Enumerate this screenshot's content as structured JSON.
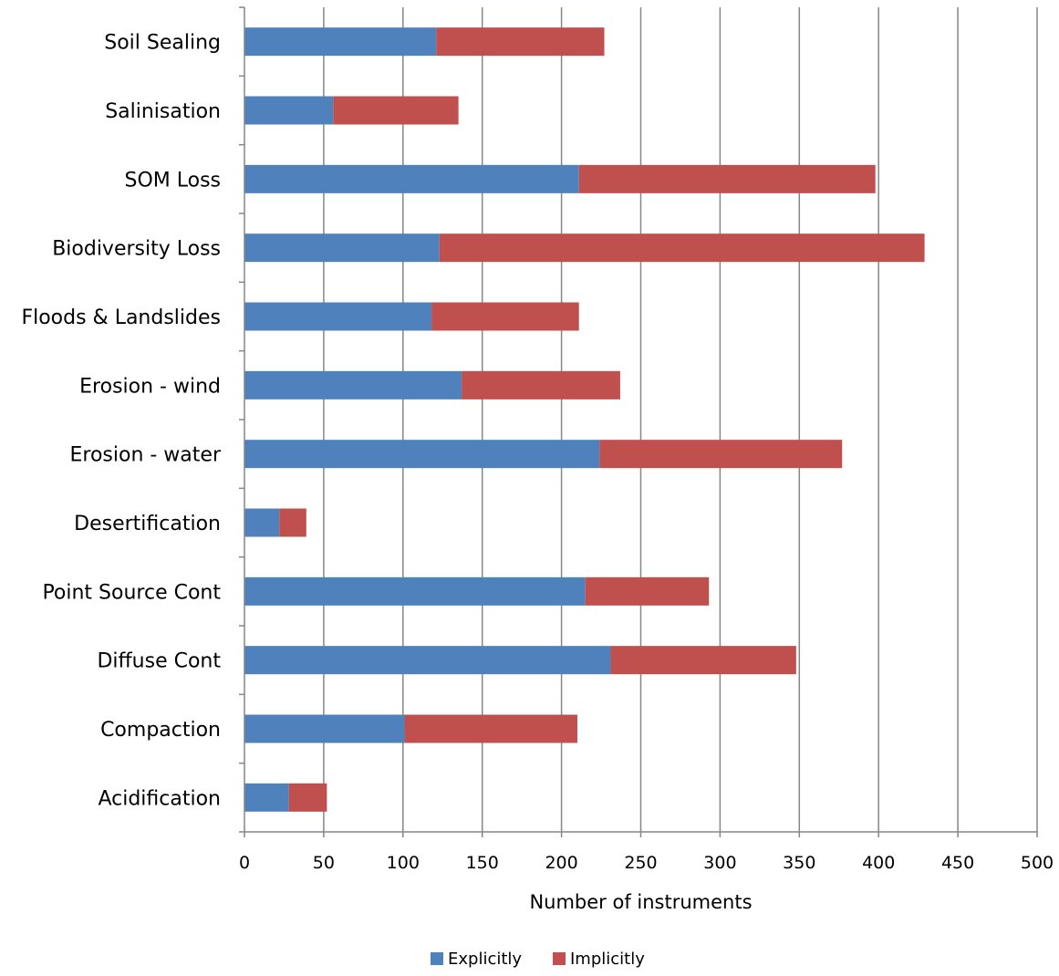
{
  "chart_data": {
    "type": "bar",
    "orientation": "horizontal",
    "stacked": true,
    "categories": [
      "Soil Sealing",
      "Salinisation",
      "SOM Loss",
      "Biodiversity Loss",
      "Floods & Landslides",
      "Erosion - wind",
      "Erosion - water",
      "Desertification",
      "Point Source Cont",
      "Diffuse Cont",
      "Compaction",
      "Acidification"
    ],
    "series": [
      {
        "name": "Explicitly",
        "color": "#4F81BD",
        "values": [
          121,
          56,
          211,
          123,
          118,
          137,
          224,
          22,
          215,
          231,
          101,
          28
        ]
      },
      {
        "name": "Implicitly",
        "color": "#C0504D",
        "values": [
          106,
          79,
          187,
          306,
          93,
          100,
          153,
          17,
          78,
          117,
          109,
          24
        ]
      }
    ],
    "xlabel": "Number of instruments",
    "ylabel": "",
    "xlim": [
      0,
      500
    ],
    "xticks": [
      "0",
      "50",
      "100",
      "150",
      "200",
      "250",
      "300",
      "350",
      "400",
      "450",
      "500"
    ],
    "grid": "vertical",
    "legend_position": "bottom"
  }
}
